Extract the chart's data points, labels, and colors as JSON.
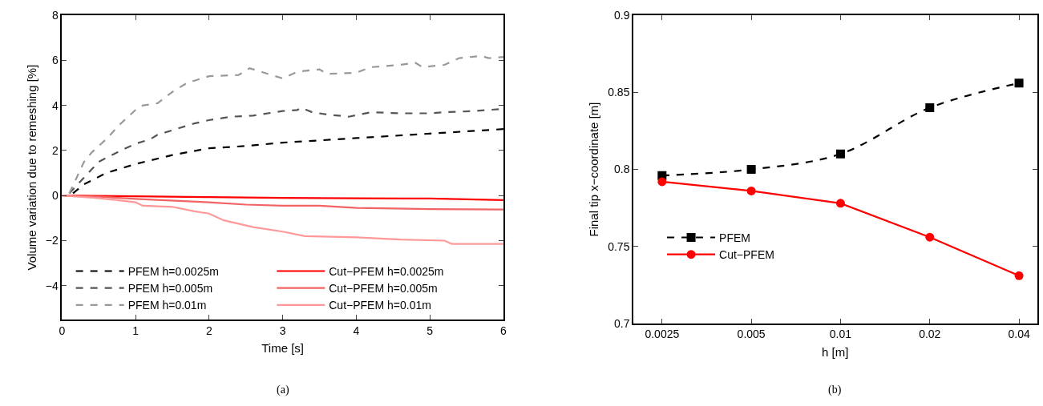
{
  "chart_data": [
    {
      "type": "line",
      "xlabel": "Time [s]",
      "ylabel": "Volume variation due to remeshing [%]",
      "xlim": [
        0,
        6
      ],
      "ylim": [
        -5.5,
        8
      ],
      "xticks": [
        0,
        1,
        2,
        3,
        4,
        5,
        6
      ],
      "yticks": [
        -4,
        -2,
        0,
        2,
        4,
        6,
        8
      ],
      "legend": "bottom",
      "annotations": [
        "(a)"
      ],
      "series": [
        {
          "name": "PFEM h=0.0025m",
          "color": "#000000",
          "line_style": "dashed",
          "x": [
            0.15,
            0.3,
            0.6,
            1.0,
            1.5,
            2.0,
            2.5,
            3.0,
            3.5,
            4.0,
            4.5,
            5.0,
            5.5,
            6.0
          ],
          "values": [
            0.1,
            0.5,
            1.0,
            1.4,
            1.8,
            2.1,
            2.2,
            2.35,
            2.45,
            2.55,
            2.65,
            2.75,
            2.85,
            2.95
          ]
        },
        {
          "name": "PFEM h=0.005m",
          "color": "#555555",
          "line_style": "dashed",
          "x": [
            0.1,
            0.3,
            0.5,
            0.8,
            1.0,
            1.2,
            1.3,
            1.5,
            1.8,
            2.0,
            2.3,
            2.6,
            3.0,
            3.2,
            3.25,
            3.4,
            3.6,
            3.9,
            4.2,
            4.6,
            5.0,
            5.2,
            5.6,
            6.0
          ],
          "values": [
            0.1,
            0.8,
            1.5,
            2.0,
            2.3,
            2.5,
            2.7,
            2.9,
            3.2,
            3.35,
            3.5,
            3.55,
            3.75,
            3.8,
            3.9,
            3.7,
            3.6,
            3.5,
            3.7,
            3.65,
            3.65,
            3.7,
            3.75,
            3.85
          ]
        },
        {
          "name": "PFEM h=0.01m",
          "color": "#999999",
          "line_style": "dashed",
          "x": [
            0.1,
            0.2,
            0.3,
            0.4,
            0.5,
            0.6,
            0.8,
            1.0,
            1.1,
            1.3,
            1.5,
            1.7,
            1.8,
            2.0,
            2.4,
            2.55,
            2.7,
            3.0,
            3.2,
            3.5,
            3.6,
            4.0,
            4.2,
            4.6,
            4.8,
            4.9,
            5.2,
            5.4,
            5.7,
            5.8,
            6.0
          ],
          "values": [
            0.1,
            0.8,
            1.5,
            1.9,
            2.2,
            2.5,
            3.2,
            3.8,
            4.0,
            4.1,
            4.6,
            5.0,
            5.1,
            5.3,
            5.35,
            5.65,
            5.5,
            5.2,
            5.5,
            5.6,
            5.4,
            5.45,
            5.7,
            5.8,
            5.9,
            5.7,
            5.8,
            6.1,
            6.2,
            6.1,
            6.15
          ]
        },
        {
          "name": "Cut−PFEM h=0.0025m",
          "color": "#ff0000",
          "line_style": "solid",
          "x": [
            0,
            1,
            2,
            3,
            4,
            5,
            6
          ],
          "values": [
            0,
            -0.03,
            -0.07,
            -0.1,
            -0.12,
            -0.13,
            -0.2
          ]
        },
        {
          "name": "Cut−PFEM h=0.005m",
          "color": "#f26464",
          "line_style": "solid",
          "x": [
            0,
            0.5,
            1,
            2,
            2.5,
            3,
            3.5,
            4,
            5,
            6
          ],
          "values": [
            0,
            -0.05,
            -0.15,
            -0.3,
            -0.4,
            -0.45,
            -0.45,
            -0.55,
            -0.6,
            -0.62
          ]
        },
        {
          "name": "Cut−PFEM h=0.01m",
          "color": "#ff9999",
          "line_style": "solid",
          "x": [
            0,
            0.45,
            0.75,
            1.0,
            1.1,
            1.5,
            1.8,
            2.0,
            2.2,
            2.4,
            2.6,
            3.0,
            3.3,
            4.0,
            4.6,
            5.2,
            5.3,
            6.0
          ],
          "values": [
            0,
            -0.1,
            -0.2,
            -0.3,
            -0.45,
            -0.5,
            -0.7,
            -0.8,
            -1.1,
            -1.25,
            -1.4,
            -1.6,
            -1.8,
            -1.85,
            -1.95,
            -2.0,
            -2.15,
            -2.15
          ]
        }
      ]
    },
    {
      "type": "line",
      "xlabel": "h [m]",
      "ylabel": "Final tip x−coordinate [m]",
      "log": "x",
      "x": [
        0.0025,
        0.005,
        0.01,
        0.02,
        0.04
      ],
      "xlim": [
        0.002,
        0.046
      ],
      "ylim": [
        0.7,
        0.9
      ],
      "xticks": [
        0.0025,
        0.005,
        0.01,
        0.02,
        0.04
      ],
      "yticks": [
        0.7,
        0.75,
        0.8,
        0.85,
        0.9
      ],
      "legend": "bottom left",
      "annotations": [
        "(b)"
      ],
      "series": [
        {
          "name": "PFEM",
          "color": "#000000",
          "line_style": "dashed",
          "marker": "square",
          "values": [
            0.796,
            0.8,
            0.81,
            0.84,
            0.856
          ]
        },
        {
          "name": "Cut−PFEM",
          "color": "#ff0000",
          "line_style": "solid",
          "marker": "circle",
          "values": [
            0.792,
            0.786,
            0.778,
            0.756,
            0.731
          ]
        }
      ]
    }
  ]
}
